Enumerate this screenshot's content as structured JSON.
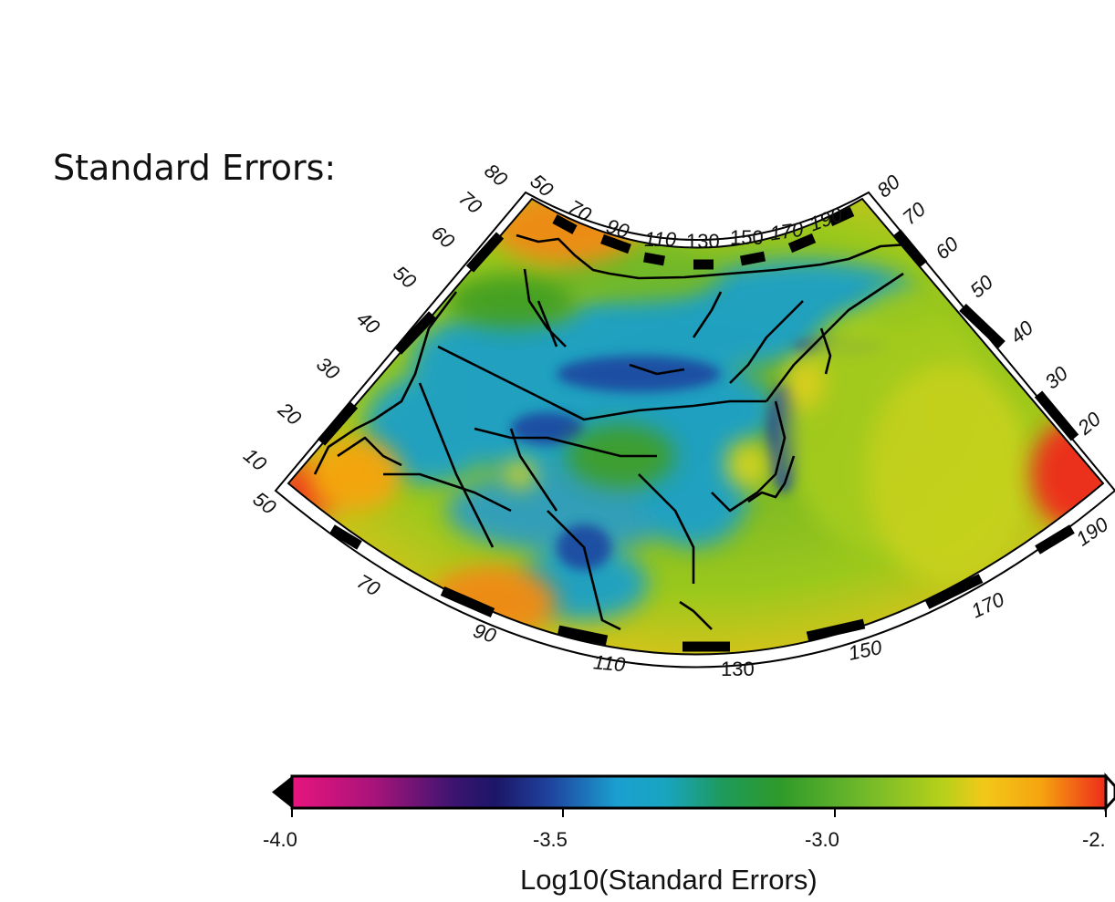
{
  "title": "Standard Errors:",
  "map": {
    "projection": "conic",
    "longitude_range": [
      50,
      190
    ],
    "latitude_range": [
      10,
      80
    ],
    "colormap": "Log10(Standard Errors)",
    "bottom_ticks": [
      "50",
      "70",
      "90",
      "110",
      "130",
      "150",
      "170",
      "190"
    ],
    "top_ticks": [
      "50",
      "70",
      "90",
      "110",
      "130",
      "150",
      "170",
      "190"
    ],
    "left_ticks": [
      "10",
      "20",
      "30",
      "40",
      "50",
      "60",
      "70",
      "80"
    ],
    "right_ticks": [
      "20",
      "30",
      "40",
      "50",
      "60",
      "70",
      "80"
    ]
  },
  "colorbar": {
    "title": "Log10(Standard Errors)",
    "labels": [
      "-4.0",
      "-3.5",
      "-3.0",
      "-2."
    ],
    "range": [
      -4.0,
      -2.5
    ],
    "colors": [
      "#e8147e",
      "#7a1276",
      "#1c1668",
      "#1f46a0",
      "#1aa0d0",
      "#19a4c0",
      "#1d8e3a",
      "#3f9e22",
      "#9cc81c",
      "#e3d11a",
      "#f6a40f",
      "#ee2b1b"
    ]
  }
}
